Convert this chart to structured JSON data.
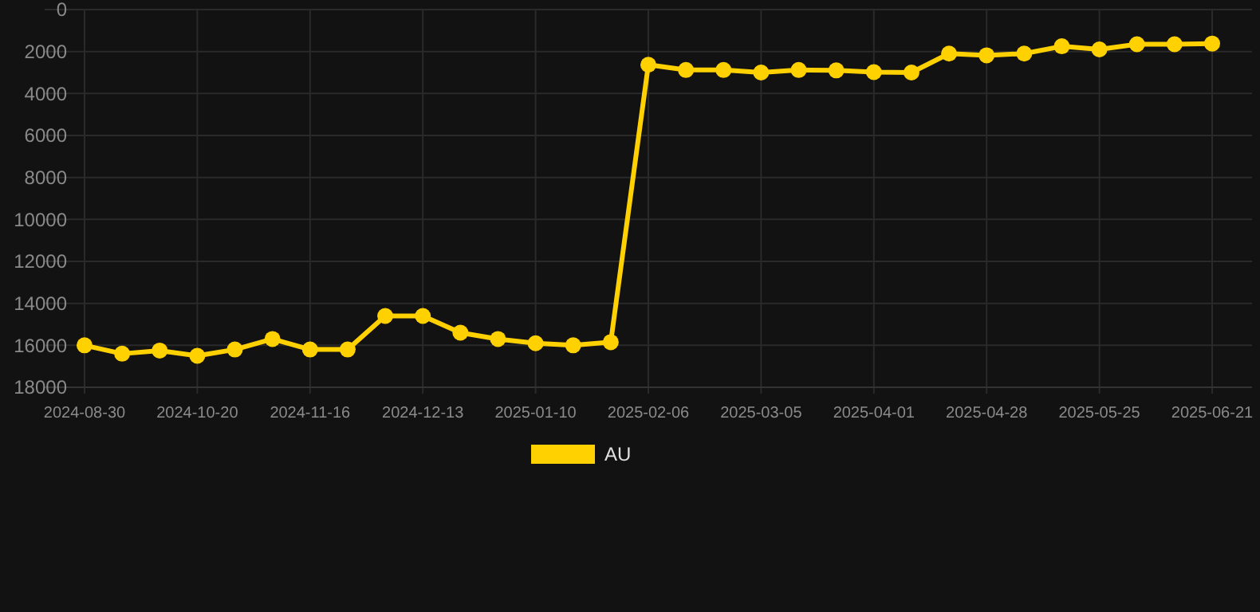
{
  "chart_data": {
    "type": "line",
    "categories": [
      "2024-08-30",
      null,
      null,
      "2024-10-20",
      null,
      null,
      "2024-11-16",
      null,
      null,
      "2024-12-13",
      null,
      null,
      "2025-01-10",
      null,
      null,
      "2025-02-06",
      null,
      null,
      "2025-03-05",
      null,
      null,
      "2025-04-01",
      null,
      null,
      "2025-04-28",
      null,
      null,
      "2025-05-25",
      null,
      null,
      "2025-06-21"
    ],
    "series": [
      {
        "name": "AU",
        "color": "#ffd100",
        "values": [
          16000,
          16400,
          16250,
          16500,
          16200,
          15700,
          16200,
          16200,
          14600,
          14600,
          15400,
          15700,
          15900,
          16000,
          15850,
          2630,
          2880,
          2880,
          3000,
          2880,
          2900,
          2980,
          3000,
          2100,
          2180,
          2100,
          1750,
          1900,
          1650,
          1650,
          1620
        ]
      }
    ],
    "ylim": [
      18000,
      0
    ],
    "yticks": [
      0,
      2000,
      4000,
      6000,
      8000,
      10000,
      12000,
      14000,
      16000,
      18000
    ],
    "grid": true,
    "legend": "bottom",
    "marker": "circle",
    "line_style": "solid"
  }
}
